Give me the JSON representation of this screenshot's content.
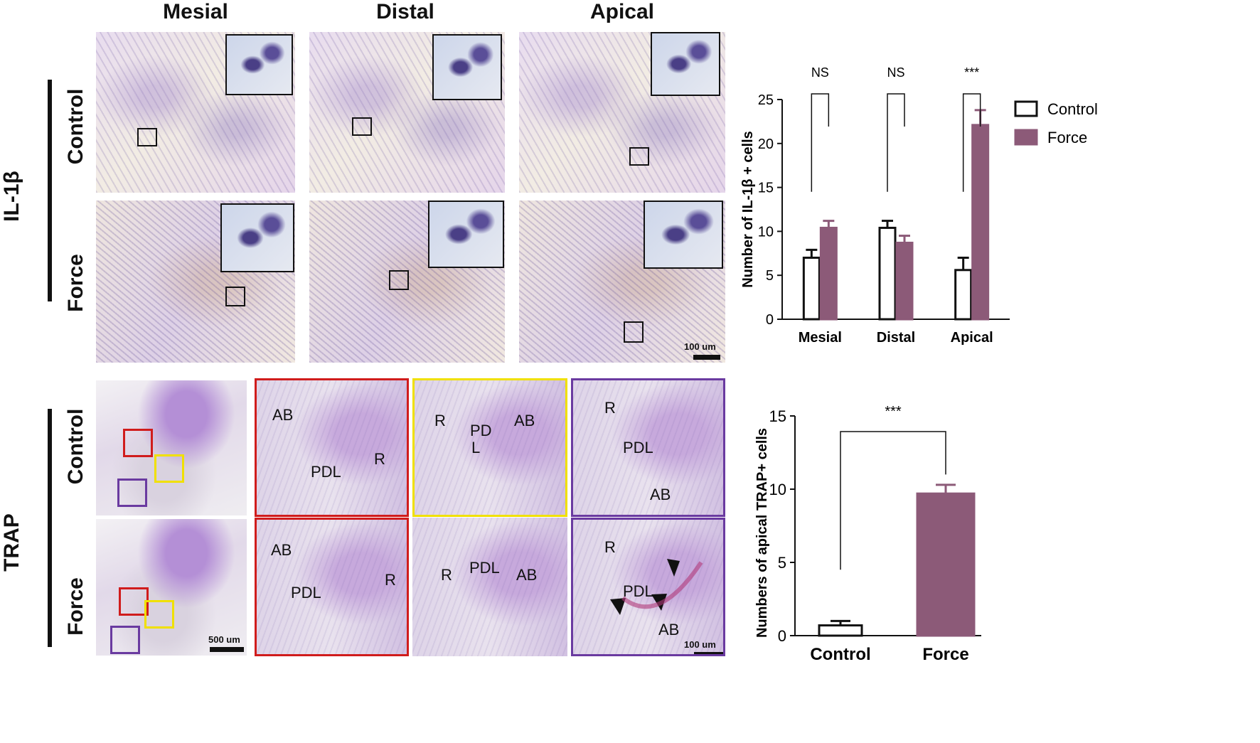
{
  "headers": {
    "col1": "Mesial",
    "col2": "Distal",
    "col3": "Apical"
  },
  "rows": {
    "top_group": "IL-1β",
    "bottom_group": "TRAP",
    "top_control": "Control",
    "top_force": "Force",
    "bottom_control": "Control",
    "bottom_force": "Force"
  },
  "tissue_labels": {
    "ab": "AB",
    "pdl": "PDL",
    "r": "R",
    "pd": "PD",
    "l": "L"
  },
  "scale_bars": {
    "s1": "100 um",
    "s2": "500 um",
    "s3": "100 um"
  },
  "colors": {
    "force": "#8c5a78",
    "control": "#ffffff",
    "red": "#d01c1c",
    "yellow": "#f0e000",
    "purple": "#6a3aa0"
  },
  "chart_data": [
    {
      "type": "bar",
      "title": "",
      "xlabel": "",
      "ylabel": "Number of IL-1β + cells",
      "categories": [
        "Mesial",
        "Distal",
        "Apical"
      ],
      "ylim": [
        0,
        25
      ],
      "yticks": [
        0,
        5,
        10,
        15,
        20,
        25
      ],
      "series": [
        {
          "name": "Control",
          "values": [
            7.0,
            10.4,
            5.6
          ],
          "errors": [
            0.9,
            0.8,
            1.4
          ]
        },
        {
          "name": "Force",
          "values": [
            10.4,
            8.7,
            22.1
          ],
          "errors": [
            0.8,
            0.8,
            1.7
          ]
        }
      ],
      "significance": [
        "NS",
        "NS",
        "***"
      ],
      "legend": "top-right"
    },
    {
      "type": "bar",
      "title": "",
      "xlabel": "",
      "ylabel": "Numbers of apical TRAP+ cells",
      "categories": [
        "Control",
        "Force"
      ],
      "ylim": [
        0,
        15
      ],
      "yticks": [
        0,
        5,
        10,
        15
      ],
      "values": [
        0.7,
        9.7
      ],
      "errors": [
        0.3,
        0.6
      ],
      "significance": "***"
    }
  ]
}
